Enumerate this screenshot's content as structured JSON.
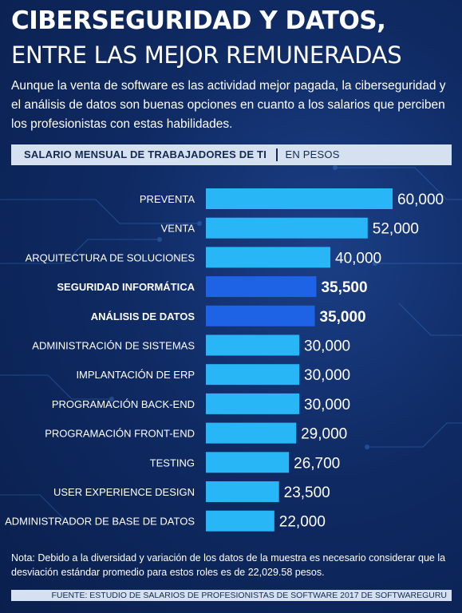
{
  "header": {
    "title_line1": "CIBERSEGURIDAD Y DATOS,",
    "title_line2": "ENTRE LAS MEJOR REMUNERADAS",
    "subtitle": "Aunque la venta de software es las actividad mejor pagada, la ciberseguridad y el análisis de datos son buenas opciones en cuanto a los salarios que perciben los profesionistas con estas habilidades."
  },
  "colors": {
    "bar_default": "#29b6f6",
    "bar_highlight": "#1e63e6",
    "background": "#0f2a63"
  },
  "chart_data": {
    "type": "bar",
    "orientation": "horizontal",
    "title": "SALARIO MENSUAL DE TRABAJADORES DE TI",
    "unit_label": "EN PESOS",
    "categories": [
      "PREVENTA",
      "VENTA",
      "ARQUITECTURA DE SOLUCIONES",
      "SEGURIDAD INFORMÁTICA",
      "ANÁLISIS DE DATOS",
      "ADMINISTRACIÓN DE SISTEMAS",
      "IMPLANTACIÓN DE ERP",
      "PROGRAMACIÓN BACK-END",
      "PROGRAMACIÓN FRONT-END",
      "TESTING",
      "USER EXPERIENCE DESIGN",
      "ADMINISTRADOR DE BASE DE DATOS"
    ],
    "values": [
      60000,
      52000,
      40000,
      35500,
      35000,
      30000,
      30000,
      30000,
      29000,
      26700,
      23500,
      22000
    ],
    "value_labels": [
      "60,000",
      "52,000",
      "40,000",
      "35,500",
      "35,000",
      "30,000",
      "30,000",
      "30,000",
      "29,000",
      "26,700",
      "23,500",
      "22,000"
    ],
    "highlighted": [
      false,
      false,
      false,
      true,
      true,
      false,
      false,
      false,
      false,
      false,
      false,
      false
    ],
    "xlim": [
      0,
      60000
    ],
    "grid": false,
    "legend": "none"
  },
  "footer": {
    "note": "Nota: Debido a la diversidad y variación de los datos de la muestra es necesario considerar que la desviación estándar promedio para estos roles es de 22,029.58 pesos.",
    "source": "FUENTE: ESTUDIO DE SALARIOS DE PROFESIONISTAS DE SOFTWARE 2017 DE SOFTWAREGURU"
  }
}
